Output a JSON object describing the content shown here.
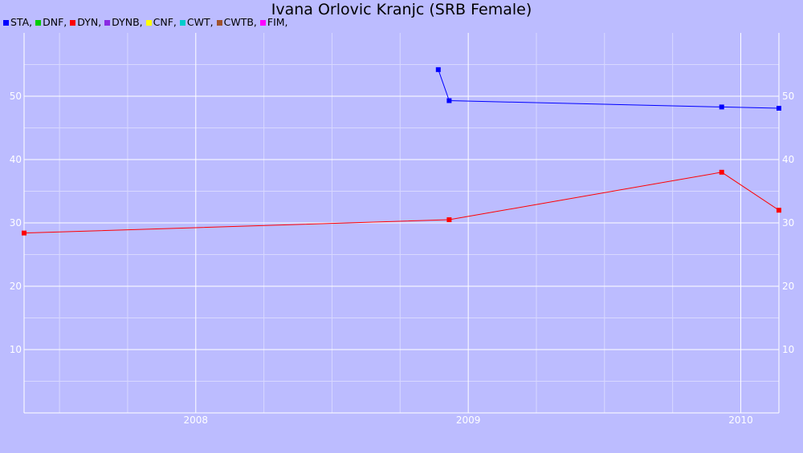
{
  "chart_data": {
    "type": "line",
    "title": "Ivana Orlovic Kranjc (SRB Female)",
    "legend_position": "top-left",
    "legend": [
      {
        "label": "STA,",
        "color": "#0000ff"
      },
      {
        "label": "DNF,",
        "color": "#00cc00"
      },
      {
        "label": "DYN,",
        "color": "#ff0000"
      },
      {
        "label": "DYNB,",
        "color": "#8a2be2"
      },
      {
        "label": "CNF,",
        "color": "#ffff00"
      },
      {
        "label": "CWT,",
        "color": "#00cccc"
      },
      {
        "label": "CWTB,",
        "color": "#a0522d"
      },
      {
        "label": "FIM,",
        "color": "#ff00ff"
      }
    ],
    "xlim": [
      2007.37,
      2010.14
    ],
    "ylim": [
      0,
      60
    ],
    "x_ticks": [
      {
        "value": 2008,
        "label": "2008"
      },
      {
        "value": 2009,
        "label": "2009"
      },
      {
        "value": 2010,
        "label": "2010"
      }
    ],
    "y_ticks": [
      {
        "value": 10,
        "label": "10"
      },
      {
        "value": 20,
        "label": "20"
      },
      {
        "value": 30,
        "label": "30"
      },
      {
        "value": 40,
        "label": "40"
      },
      {
        "value": 50,
        "label": "50"
      }
    ],
    "grid": true,
    "series": [
      {
        "name": "STA",
        "color": "#0000ff",
        "points": [
          {
            "x": 2008.89,
            "y": 54.2
          },
          {
            "x": 2008.93,
            "y": 49.3
          },
          {
            "x": 2009.93,
            "y": 48.3
          },
          {
            "x": 2010.14,
            "y": 48.1
          }
        ]
      },
      {
        "name": "DYN",
        "color": "#ff0000",
        "points": [
          {
            "x": 2007.37,
            "y": 28.4
          },
          {
            "x": 2008.93,
            "y": 30.5
          },
          {
            "x": 2009.93,
            "y": 38.0
          },
          {
            "x": 2010.14,
            "y": 32.0
          }
        ]
      }
    ]
  }
}
